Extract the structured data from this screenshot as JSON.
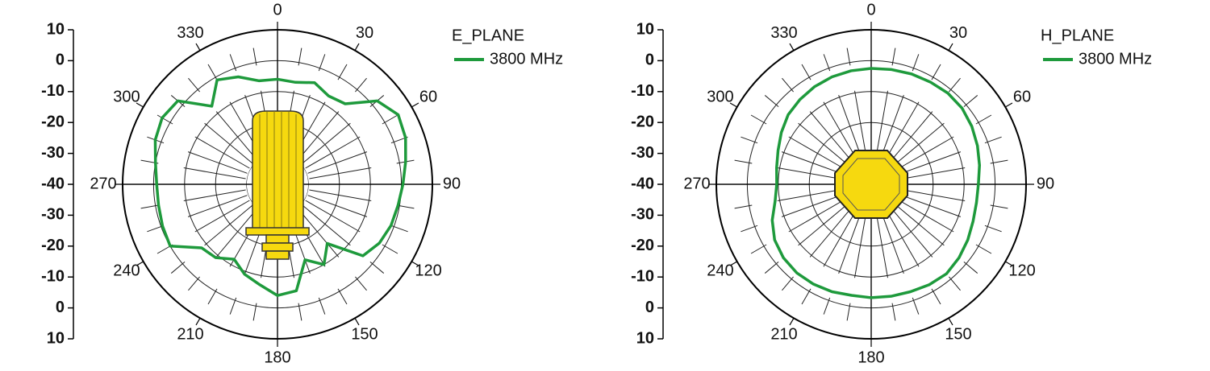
{
  "chart_data": [
    {
      "type": "polar",
      "legend_title": "E_PLANE",
      "direction": "clockwise",
      "rlim": [
        -40,
        10
      ],
      "rticks": [
        -40,
        -30,
        -20,
        -10,
        0,
        10
      ],
      "thetaticks": [
        0,
        30,
        60,
        90,
        120,
        150,
        180,
        210,
        240,
        270,
        300,
        330
      ],
      "theta": [
        0,
        10,
        20,
        30,
        40,
        50,
        60,
        70,
        80,
        90,
        100,
        110,
        120,
        130,
        140,
        150,
        160,
        170,
        180,
        190,
        200,
        210,
        220,
        230,
        240,
        250,
        260,
        270,
        280,
        290,
        300,
        310,
        320,
        330,
        340,
        350
      ],
      "series": [
        {
          "name": "3800 MHz",
          "color": "#1e9a3c",
          "values": [
            -6,
            -6.5,
            -5,
            -7,
            -6,
            2,
            5,
            4,
            2,
            0.5,
            -0.5,
            -1,
            -2,
            -4,
            -15,
            -10,
            -14,
            -5,
            -4,
            -7,
            -9,
            -12,
            -9,
            -8,
            0,
            -0.5,
            -1,
            -1,
            0,
            2,
            3,
            2,
            -7,
            -1,
            -3,
            -6
          ]
        }
      ]
    },
    {
      "type": "polar",
      "legend_title": "H_PLANE",
      "direction": "clockwise",
      "rlim": [
        -40,
        10
      ],
      "rticks": [
        -40,
        -30,
        -20,
        -10,
        0,
        10
      ],
      "thetaticks": [
        0,
        30,
        60,
        90,
        120,
        150,
        180,
        210,
        240,
        270,
        300,
        330
      ],
      "theta": [
        0,
        10,
        20,
        30,
        40,
        50,
        60,
        70,
        80,
        90,
        100,
        110,
        120,
        130,
        140,
        150,
        160,
        170,
        180,
        190,
        200,
        210,
        220,
        230,
        240,
        250,
        260,
        270,
        280,
        290,
        300,
        310,
        320,
        330,
        340,
        350
      ],
      "series": [
        {
          "name": "3800 MHz",
          "color": "#1e9a3c",
          "values": [
            -2.5,
            -2.3,
            -2,
            -1.8,
            -1.5,
            -1.7,
            -2.5,
            -3.5,
            -4.5,
            -5.4,
            -5.5,
            -5,
            -4,
            -3,
            -2.2,
            -2.5,
            -3,
            -3.2,
            -3.3,
            -3.5,
            -3,
            -2.7,
            -2.6,
            -3,
            -4,
            -6,
            -8.5,
            -9.5,
            -9,
            -8,
            -6.5,
            -5,
            -4.2,
            -3.5,
            -3,
            -2.7
          ]
        }
      ]
    }
  ]
}
